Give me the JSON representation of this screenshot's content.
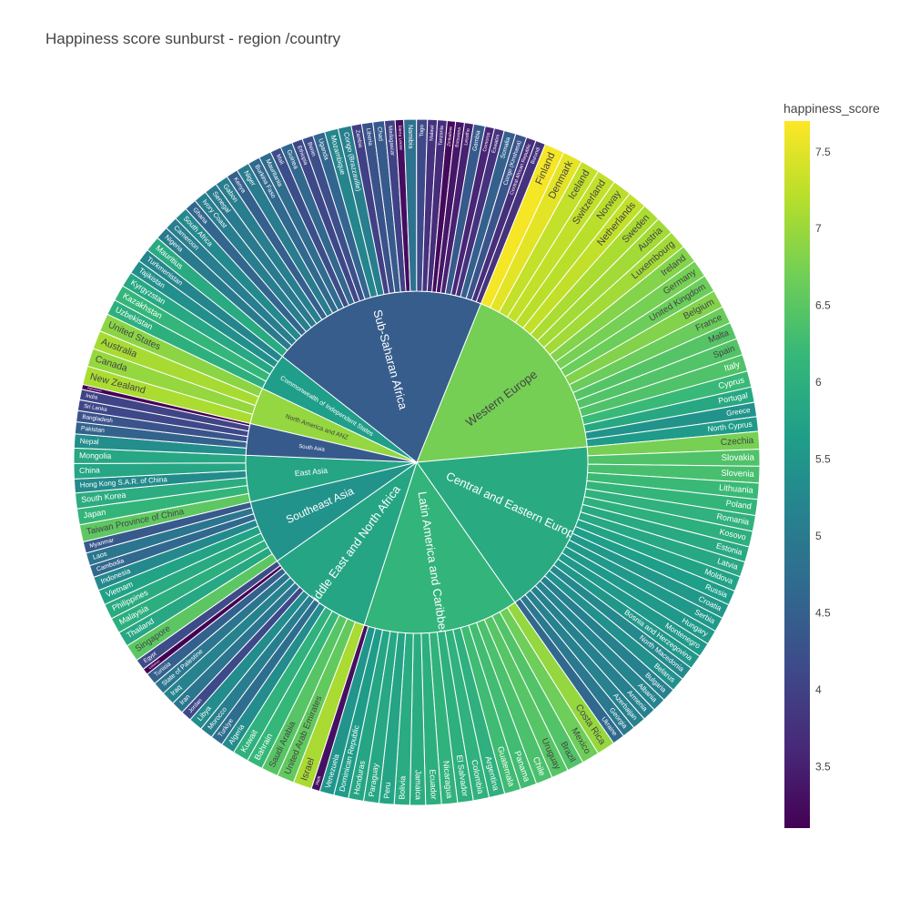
{
  "title": "Happiness score sunburst - region /country",
  "chart_data": {
    "type": "sunburst",
    "title": "Happiness score sunburst - region /country",
    "colorbar": {
      "title": "happiness_score",
      "colorscale": "Viridis",
      "range": [
        3.1,
        7.7
      ],
      "ticks": [
        3.5,
        4,
        4.5,
        5,
        5.5,
        6,
        6.5,
        7,
        7.5
      ],
      "tick_labels": [
        "3.5",
        "4",
        "4.5",
        "5",
        "5.5",
        "6",
        "6.5",
        "7",
        "7.5"
      ]
    },
    "regions": [
      {
        "name": "Western Europe",
        "value": 6.72,
        "countries": [
          {
            "name": "Finland",
            "value": 7.64
          },
          {
            "name": "Denmark",
            "value": 7.52
          },
          {
            "name": "Iceland",
            "value": 7.29
          },
          {
            "name": "Switzerland",
            "value": 7.28
          },
          {
            "name": "Norway",
            "value": 7.22
          },
          {
            "name": "Netherlands",
            "value": 7.28
          },
          {
            "name": "Sweden",
            "value": 7.12
          },
          {
            "name": "Austria",
            "value": 7.05
          },
          {
            "name": "Luxembourg",
            "value": 7.05
          },
          {
            "name": "Ireland",
            "value": 6.83
          },
          {
            "name": "Germany",
            "value": 6.73
          },
          {
            "name": "United Kingdom",
            "value": 6.65
          },
          {
            "name": "Belgium",
            "value": 6.82
          },
          {
            "name": "France",
            "value": 6.63
          },
          {
            "name": "Malta",
            "value": 6.45
          },
          {
            "name": "Spain",
            "value": 6.43
          },
          {
            "name": "Italy",
            "value": 6.41
          },
          {
            "name": "Cyprus",
            "value": 6.2
          },
          {
            "name": "Portugal",
            "value": 5.87
          },
          {
            "name": "Greece",
            "value": 5.45
          },
          {
            "name": "North Cyprus",
            "value": 5.6
          }
        ]
      },
      {
        "name": "Central and Eastern Europe",
        "value": 5.9,
        "countries": [
          {
            "name": "Czechia",
            "value": 6.74
          },
          {
            "name": "Slovakia",
            "value": 6.41
          },
          {
            "name": "Slovenia",
            "value": 6.34
          },
          {
            "name": "Lithuania",
            "value": 6.21
          },
          {
            "name": "Poland",
            "value": 6.12
          },
          {
            "name": "Romania",
            "value": 6.04
          },
          {
            "name": "Kosovo",
            "value": 6.0
          },
          {
            "name": "Estonia",
            "value": 5.88
          },
          {
            "name": "Latvia",
            "value": 5.84
          },
          {
            "name": "Moldova",
            "value": 5.76
          },
          {
            "name": "Russia",
            "value": 5.66
          },
          {
            "name": "Croatia",
            "value": 5.54
          },
          {
            "name": "Serbia",
            "value": 5.57
          },
          {
            "name": "Hungary",
            "value": 5.56
          },
          {
            "name": "Montenegro",
            "value": 5.55
          },
          {
            "name": "Bosnia and Herzegovina",
            "value": 5.53
          },
          {
            "name": "North Macedonia",
            "value": 5.25
          },
          {
            "name": "Belarus",
            "value": 5.4
          },
          {
            "name": "Bulgaria",
            "value": 5.11
          },
          {
            "name": "Albania",
            "value": 5.18
          },
          {
            "name": "Armenia",
            "value": 5.1
          },
          {
            "name": "Azerbaijan",
            "value": 5.12
          },
          {
            "name": "Georgia",
            "value": 4.97
          },
          {
            "name": "Ukraine",
            "value": 4.64
          }
        ]
      },
      {
        "name": "Latin America and Caribbean",
        "value": 6.1,
        "countries": [
          {
            "name": "Costa Rica",
            "value": 6.96
          },
          {
            "name": "Mexico",
            "value": 6.67
          },
          {
            "name": "Brazil",
            "value": 6.43
          },
          {
            "name": "Uruguay",
            "value": 6.47
          },
          {
            "name": "Chile",
            "value": 6.36
          },
          {
            "name": "Panama",
            "value": 6.28
          },
          {
            "name": "Guatemala",
            "value": 6.26
          },
          {
            "name": "Argentina",
            "value": 6.02
          },
          {
            "name": "Colombia",
            "value": 6.04
          },
          {
            "name": "El Salvador",
            "value": 6.01
          },
          {
            "name": "Nicaragua",
            "value": 6.07
          },
          {
            "name": "Ecuador",
            "value": 5.98
          },
          {
            "name": "Jamaica",
            "value": 5.94
          },
          {
            "name": "Bolivia",
            "value": 5.92
          },
          {
            "name": "Peru",
            "value": 5.78
          },
          {
            "name": "Paraguay",
            "value": 5.84
          },
          {
            "name": "Honduras",
            "value": 5.8
          },
          {
            "name": "Dominican Republic",
            "value": 5.62
          },
          {
            "name": "Venezuela",
            "value": 5.5
          },
          {
            "name": "Haiti",
            "value": 3.3
          }
        ]
      },
      {
        "name": "Middle East and North Africa",
        "value": 5.8,
        "countries": [
          {
            "name": "Israel",
            "value": 7.1
          },
          {
            "name": "United Arab Emirates",
            "value": 6.57
          },
          {
            "name": "Saudi Arabia",
            "value": 6.47
          },
          {
            "name": "Bahrain",
            "value": 6.17
          },
          {
            "name": "Kuwait",
            "value": 6.05
          },
          {
            "name": "Algeria",
            "value": 5.33
          },
          {
            "name": "Turkiye",
            "value": 4.74
          },
          {
            "name": "Morocco",
            "value": 5.06
          },
          {
            "name": "Libya",
            "value": 5.33
          },
          {
            "name": "Jordan",
            "value": 4.12
          },
          {
            "name": "Iran",
            "value": 4.88
          },
          {
            "name": "Iraq",
            "value": 5.17
          },
          {
            "name": "State of Palestine",
            "value": 4.91
          },
          {
            "name": "Tunisia",
            "value": 4.5
          },
          {
            "name": "Lebanon",
            "value": 2.4
          },
          {
            "name": "Egypt",
            "value": 4.17
          }
        ]
      },
      {
        "name": "Southeast Asia",
        "value": 5.45,
        "countries": [
          {
            "name": "Singapore",
            "value": 6.52
          },
          {
            "name": "Thailand",
            "value": 5.84
          },
          {
            "name": "Malaysia",
            "value": 5.98
          },
          {
            "name": "Philippines",
            "value": 5.9
          },
          {
            "name": "Vietnam",
            "value": 5.76
          },
          {
            "name": "Indonesia",
            "value": 5.28
          },
          {
            "name": "Cambodia",
            "value": 4.64
          },
          {
            "name": "Laos",
            "value": 4.88
          },
          {
            "name": "Myanmar",
            "value": 4.39
          }
        ]
      },
      {
        "name": "East Asia",
        "value": 5.8,
        "countries": [
          {
            "name": "Taiwan Province of China",
            "value": 6.53
          },
          {
            "name": "Japan",
            "value": 6.13
          },
          {
            "name": "South Korea",
            "value": 5.95
          },
          {
            "name": "Hong Kong S.A.R. of China",
            "value": 5.31
          },
          {
            "name": "China",
            "value": 5.82
          },
          {
            "name": "Mongolia",
            "value": 5.84
          }
        ]
      },
      {
        "name": "South Asia",
        "value": 4.4,
        "countries": [
          {
            "name": "Nepal",
            "value": 5.36
          },
          {
            "name": "Pakistan",
            "value": 4.55
          },
          {
            "name": "Bangladesh",
            "value": 4.28
          },
          {
            "name": "Sri Lanka",
            "value": 4.1
          },
          {
            "name": "India",
            "value": 4.04
          },
          {
            "name": "Afghanistan",
            "value": 1.86
          }
        ]
      },
      {
        "name": "North America and ANZ",
        "value": 6.95,
        "countries": [
          {
            "name": "New Zealand",
            "value": 7.12
          },
          {
            "name": "Canada",
            "value": 6.96
          },
          {
            "name": "Australia",
            "value": 7.09
          },
          {
            "name": "United States",
            "value": 6.89
          }
        ]
      },
      {
        "name": "Commonwealth of Independent States",
        "value": 5.65,
        "countries": [
          {
            "name": "Uzbekistan",
            "value": 6.01
          },
          {
            "name": "Kazakhstan",
            "value": 6.14
          },
          {
            "name": "Kyrgyzstan",
            "value": 5.83
          },
          {
            "name": "Tajikistan",
            "value": 5.38
          },
          {
            "name": "Turkmenistan",
            "value": 5.2
          }
        ]
      },
      {
        "name": "Sub-Saharan Africa",
        "value": 4.45,
        "countries": [
          {
            "name": "Mauritius",
            "value": 5.9
          },
          {
            "name": "Nigeria",
            "value": 4.98
          },
          {
            "name": "Cameroon",
            "value": 5.05
          },
          {
            "name": "South Africa",
            "value": 5.27
          },
          {
            "name": "Ghana",
            "value": 4.6
          },
          {
            "name": "Ivory Coast",
            "value": 5.05
          },
          {
            "name": "Senegal",
            "value": 4.97
          },
          {
            "name": "Gabon",
            "value": 5.04
          },
          {
            "name": "Kenya",
            "value": 4.49
          },
          {
            "name": "Niger",
            "value": 5.0
          },
          {
            "name": "Burkina Faso",
            "value": 4.64
          },
          {
            "name": "Mauritania",
            "value": 4.72
          },
          {
            "name": "Mali",
            "value": 4.2
          },
          {
            "name": "Guinea",
            "value": 4.61
          },
          {
            "name": "Ethiopia",
            "value": 4.1
          },
          {
            "name": "Benin",
            "value": 4.22
          },
          {
            "name": "Uganda",
            "value": 4.6
          },
          {
            "name": "Mozambique",
            "value": 5.2
          },
          {
            "name": "Congo (Brazzaville)",
            "value": 5.08
          },
          {
            "name": "Zambia",
            "value": 3.98
          },
          {
            "name": "Liberia",
            "value": 4.27
          },
          {
            "name": "Chad",
            "value": 4.4
          },
          {
            "name": "Madagascar",
            "value": 4.02
          },
          {
            "name": "Sierra Leone",
            "value": 3.25
          },
          {
            "name": "Namibia",
            "value": 4.83
          },
          {
            "name": "Togo",
            "value": 4.13
          },
          {
            "name": "Malawi",
            "value": 3.75
          },
          {
            "name": "Tanzania",
            "value": 3.69
          },
          {
            "name": "Zimbabwe",
            "value": 3.2
          },
          {
            "name": "Botswana",
            "value": 3.38
          },
          {
            "name": "Lesotho",
            "value": 3.5
          },
          {
            "name": "Gambia",
            "value": 4.4
          },
          {
            "name": "Comoros",
            "value": 3.57
          },
          {
            "name": "Eswatini",
            "value": 3.77
          },
          {
            "name": "Somalia",
            "value": 4.5
          },
          {
            "name": "Congo (Kinshasa)",
            "value": 4.3
          },
          {
            "name": "Central African Republic",
            "value": 3.7
          },
          {
            "name": "Burundi",
            "value": 3.77
          }
        ]
      }
    ]
  }
}
